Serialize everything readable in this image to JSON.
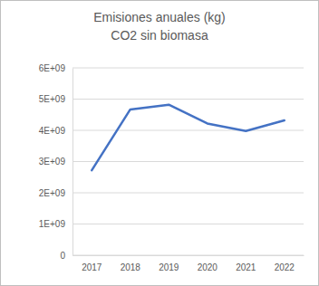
{
  "chart_data": {
    "type": "line",
    "title": "Emisiones anuales (kg)",
    "subtitle": "CO2 sin biomasa",
    "categories": [
      "2017",
      "2018",
      "2019",
      "2020",
      "2021",
      "2022"
    ],
    "values": [
      2720000000,
      4670000000,
      4820000000,
      4220000000,
      3980000000,
      4320000000
    ],
    "color": "#4472c4",
    "ylim": [
      0,
      6000000000
    ],
    "yticks": [
      0,
      {
        "value": 1000000000,
        "label": "1E+09"
      },
      {
        "value": 2000000000,
        "label": "2E+09"
      },
      {
        "value": 3000000000,
        "label": "3E+09"
      },
      {
        "value": 4000000000,
        "label": "4E+09"
      },
      {
        "value": 5000000000,
        "label": "5E+09"
      },
      {
        "value": 6000000000,
        "label": "6E+09"
      }
    ],
    "grid": true
  }
}
